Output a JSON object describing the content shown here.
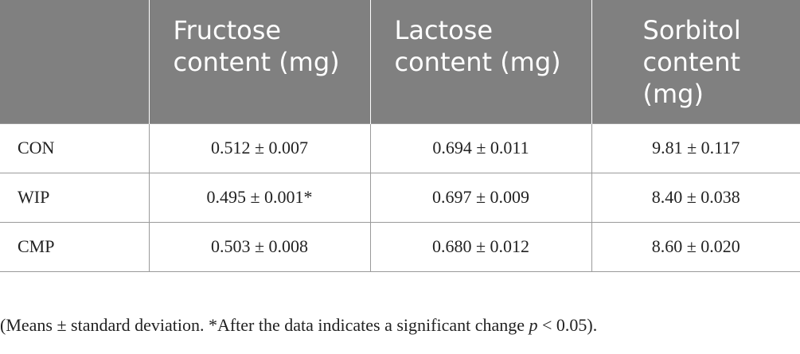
{
  "table": {
    "header": [
      "",
      "Fructose content (mg)",
      "Lactose content (mg)",
      "Sorbitol content (mg)"
    ],
    "rows": [
      [
        "CON",
        "0.512 ± 0.007",
        "0.694 ± 0.011",
        "9.81 ± 0.117"
      ],
      [
        "WIP",
        "0.495 ± 0.001*",
        "0.697 ± 0.009",
        "8.40 ± 0.038"
      ],
      [
        "CMP",
        "0.503 ± 0.008",
        "0.680 ± 0.012",
        "8.60 ± 0.020"
      ]
    ]
  },
  "footnote": {
    "before": "(Means ± standard deviation. *After the data indicates a significant change ",
    "italic": "p",
    "after": " < 0.05)."
  }
}
